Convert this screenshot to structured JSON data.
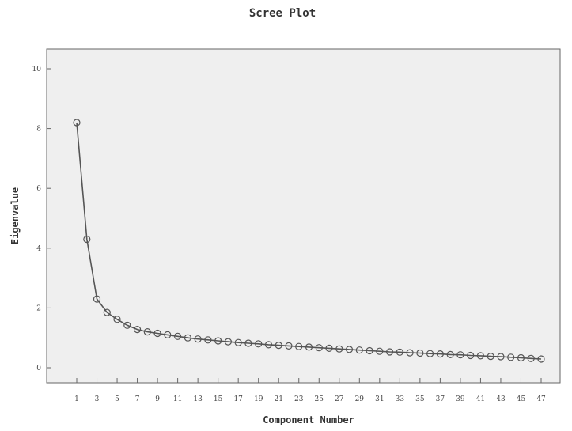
{
  "chart_data": {
    "type": "line",
    "title": "Scree Plot",
    "xlabel": "Component Number",
    "ylabel": "Eigenvalue",
    "xlim": [
      1,
      47
    ],
    "ylim": [
      0,
      10
    ],
    "x_ticks": [
      1,
      3,
      5,
      7,
      9,
      11,
      13,
      15,
      17,
      19,
      21,
      23,
      25,
      27,
      29,
      31,
      33,
      35,
      37,
      39,
      41,
      43,
      45,
      47
    ],
    "x_tick_labels": [
      "1",
      "3",
      "5",
      "7",
      "9",
      "11",
      "13",
      "15",
      "17",
      "19",
      "21",
      "23",
      "25",
      "27",
      "29",
      "31",
      "33",
      "35",
      "37",
      "39",
      "41",
      "43",
      "45",
      "47"
    ],
    "y_ticks": [
      0,
      2,
      4,
      6,
      8,
      10
    ],
    "y_tick_labels": [
      "0",
      "2",
      "4",
      "6",
      "8",
      "10"
    ],
    "grid": false,
    "x": [
      1,
      2,
      3,
      4,
      5,
      6,
      7,
      8,
      9,
      10,
      11,
      12,
      13,
      14,
      15,
      16,
      17,
      18,
      19,
      20,
      21,
      22,
      23,
      24,
      25,
      26,
      27,
      28,
      29,
      30,
      31,
      32,
      33,
      34,
      35,
      36,
      37,
      38,
      39,
      40,
      41,
      42,
      43,
      44,
      45,
      46,
      47
    ],
    "values": [
      8.2,
      4.3,
      2.3,
      1.85,
      1.62,
      1.42,
      1.28,
      1.2,
      1.15,
      1.1,
      1.05,
      1.0,
      0.96,
      0.93,
      0.9,
      0.87,
      0.84,
      0.82,
      0.8,
      0.77,
      0.75,
      0.73,
      0.71,
      0.69,
      0.67,
      0.65,
      0.63,
      0.61,
      0.59,
      0.57,
      0.55,
      0.53,
      0.52,
      0.5,
      0.49,
      0.47,
      0.46,
      0.44,
      0.43,
      0.41,
      0.4,
      0.38,
      0.37,
      0.35,
      0.33,
      0.31,
      0.29
    ]
  }
}
